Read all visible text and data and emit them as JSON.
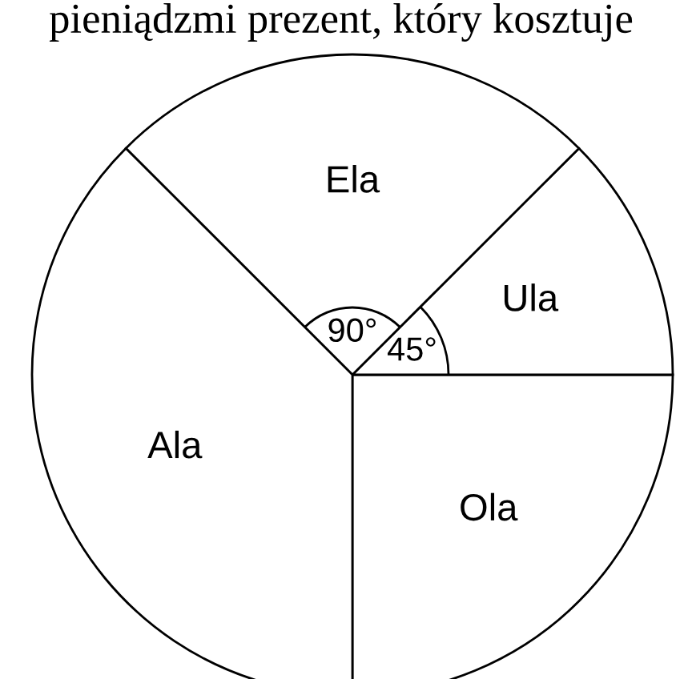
{
  "chart_data": {
    "type": "pie",
    "title": "pieniądzmi prezent, który kosztuje",
    "categories": [
      "Ola",
      "Ula",
      "Ela",
      "Ala"
    ],
    "values": [
      25,
      12.5,
      25,
      37.5
    ],
    "colors": [
      "#ffffff",
      "#ffffff",
      "#ffffff",
      "#ffffff"
    ],
    "annotations": [
      {
        "text": "90°",
        "x": "Ela"
      },
      {
        "text": "45°",
        "x": "Ula"
      }
    ]
  }
}
